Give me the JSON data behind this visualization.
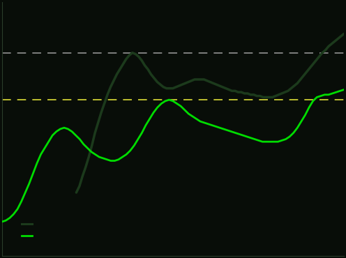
{
  "background_color": "#080d08",
  "plot_bg_color": "#080d08",
  "axis_color": "#2a3d2a",
  "dark_line_color": "#1c3a1c",
  "bright_line_color": "#00dd00",
  "dashed_dark_color": "#888888",
  "dashed_bright_color": "#cccc33",
  "legend_dark_label": "——",
  "legend_bright_label": "——",
  "dark_line_gfc_peak_y": 20.5,
  "bright_line_gfc_peak_y": 16.8,
  "ylim": [
    4.5,
    24.5
  ],
  "xlim_start": 0,
  "xlim_end": 92,
  "vacancy_data": [
    7.2,
    7.3,
    7.5,
    7.8,
    8.2,
    8.8,
    9.5,
    10.2,
    11.0,
    11.8,
    12.5,
    13.0,
    13.5,
    14.0,
    14.3,
    14.5,
    14.6,
    14.5,
    14.3,
    14.0,
    13.7,
    13.3,
    13.0,
    12.7,
    12.5,
    12.3,
    12.2,
    12.1,
    12.0,
    12.0,
    12.1,
    12.3,
    12.5,
    12.8,
    13.2,
    13.7,
    14.2,
    14.8,
    15.3,
    15.8,
    16.2,
    16.5,
    16.7,
    16.8,
    16.7,
    16.5,
    16.3,
    16.0,
    15.7,
    15.5,
    15.3,
    15.1,
    15.0,
    14.9,
    14.8,
    14.7,
    14.6,
    14.5,
    14.4,
    14.3,
    14.2,
    14.1,
    14.0,
    13.9,
    13.8,
    13.7,
    13.6,
    13.5,
    13.5,
    13.5,
    13.5,
    13.5,
    13.6,
    13.7,
    13.9,
    14.2,
    14.6,
    15.1,
    15.6,
    16.2,
    16.7,
    17.0,
    17.1,
    17.2,
    17.2,
    17.3,
    17.4,
    17.5,
    17.6
  ],
  "availability_data": [
    9.5,
    10.0,
    10.8,
    11.5,
    12.3,
    13.2,
    14.2,
    15.0,
    15.8,
    16.5,
    17.2,
    17.8,
    18.3,
    18.8,
    19.2,
    19.6,
    20.0,
    20.3,
    20.5,
    20.4,
    20.2,
    19.9,
    19.5,
    19.2,
    18.8,
    18.5,
    18.2,
    18.0,
    17.8,
    17.7,
    17.7,
    17.7,
    17.8,
    17.9,
    18.0,
    18.1,
    18.2,
    18.3,
    18.4,
    18.4,
    18.4,
    18.4,
    18.3,
    18.2,
    18.1,
    18.0,
    17.9,
    17.8,
    17.7,
    17.6,
    17.5,
    17.5,
    17.4,
    17.4,
    17.3,
    17.3,
    17.2,
    17.2,
    17.1,
    17.1,
    17.0,
    17.0,
    17.0,
    17.0,
    17.1,
    17.2,
    17.3,
    17.4,
    17.5,
    17.7,
    17.9,
    18.1,
    18.4,
    18.7,
    19.0,
    19.3,
    19.6,
    19.9,
    20.2,
    20.5,
    20.7,
    21.0,
    21.2,
    21.4,
    21.6,
    21.8,
    22.0
  ],
  "availability_start_idx": 20
}
